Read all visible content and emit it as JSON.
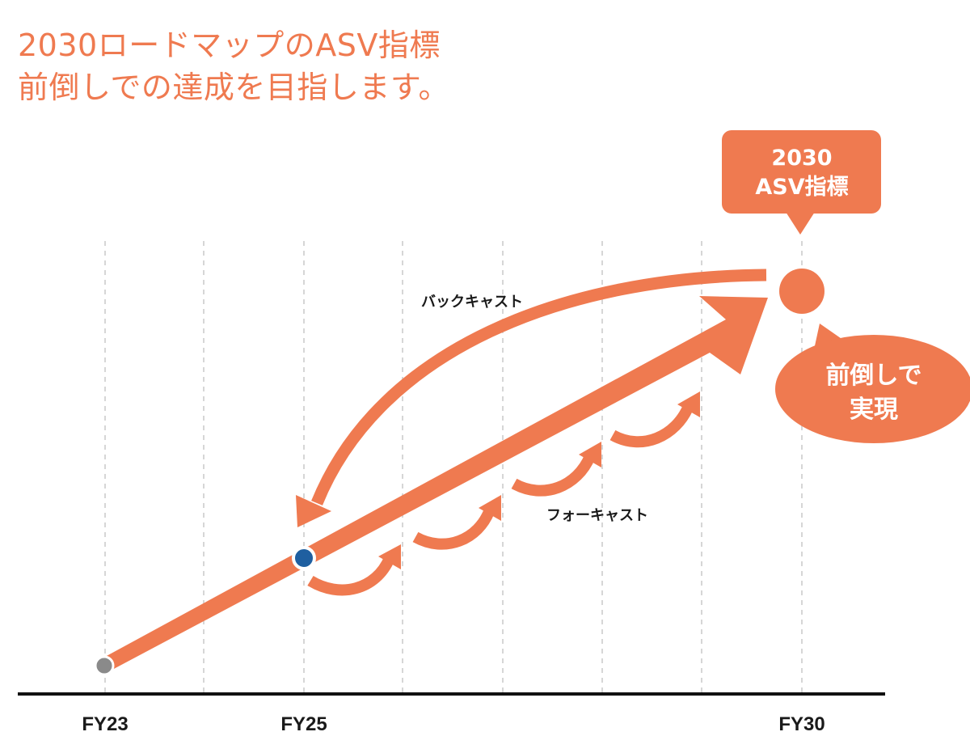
{
  "headline": {
    "line1": "2030ロードマップのASV指標",
    "line2": "前倒しでの達成を目指します。"
  },
  "callout_top": {
    "line1": "2030",
    "line2": "ASV指標"
  },
  "callout_right": {
    "line1": "前倒しで",
    "line2": "実現"
  },
  "labels": {
    "backcast": "バックキャスト",
    "forecast": "フォーキャスト"
  },
  "x_axis": {
    "ticks": [
      "FY23",
      "FY25",
      "FY30"
    ]
  },
  "colors": {
    "accent": "#ef7a50",
    "current_point": "#1f5fa0",
    "start_point": "#8a8a8a",
    "grid": "#c8c8c8",
    "axis": "#111111"
  }
}
